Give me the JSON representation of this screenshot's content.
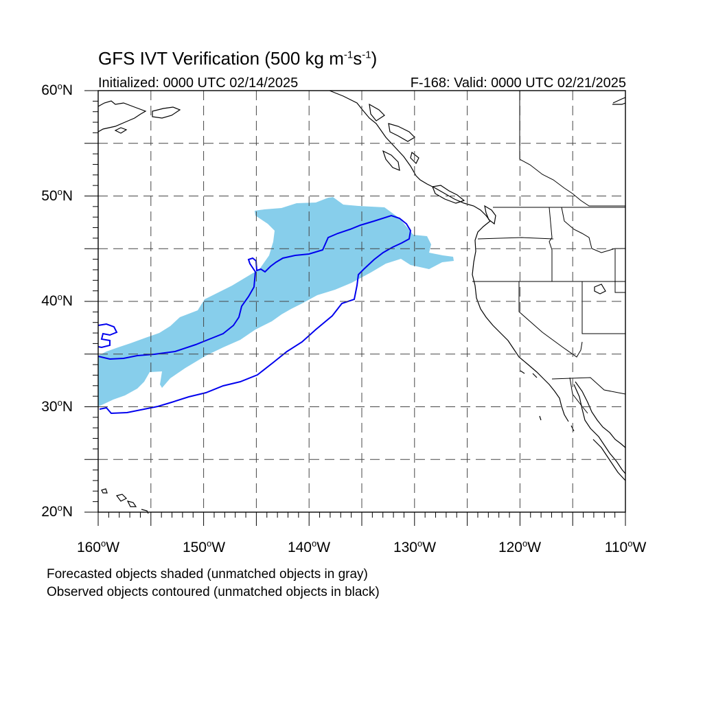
{
  "title_main": "GFS IVT Verification (500 kg m",
  "title_exp1": "-1",
  "title_mid": "s",
  "title_exp2": "-1",
  "title_end": ")",
  "init_text": "Initialized: 0000 UTC 02/14/2025",
  "valid_text": "F-168: Valid: 0000 UTC 02/21/2025",
  "lat_labels": [
    {
      "value": "60",
      "suffix": "N"
    },
    {
      "value": "50",
      "suffix": "N"
    },
    {
      "value": "40",
      "suffix": "N"
    },
    {
      "value": "30",
      "suffix": "N"
    },
    {
      "value": "20",
      "suffix": "N"
    }
  ],
  "lon_labels": [
    {
      "value": "160",
      "suffix": "W"
    },
    {
      "value": "150",
      "suffix": "W"
    },
    {
      "value": "140",
      "suffix": "W"
    },
    {
      "value": "130",
      "suffix": "W"
    },
    {
      "value": "120",
      "suffix": "W"
    },
    {
      "value": "110",
      "suffix": "W"
    }
  ],
  "footnote1": "Forecasted objects shaded (unmatched objects in gray)",
  "footnote2": "Observed objects contoured (unmatched objects in black)",
  "map": {
    "lon_range": [
      -160,
      -110
    ],
    "lat_range": [
      20,
      60
    ],
    "forecast_fill_color": "#87ceeb",
    "observed_contour_color": "#0000ee",
    "coast_color": "#000000",
    "grid_color": "#444444"
  }
}
